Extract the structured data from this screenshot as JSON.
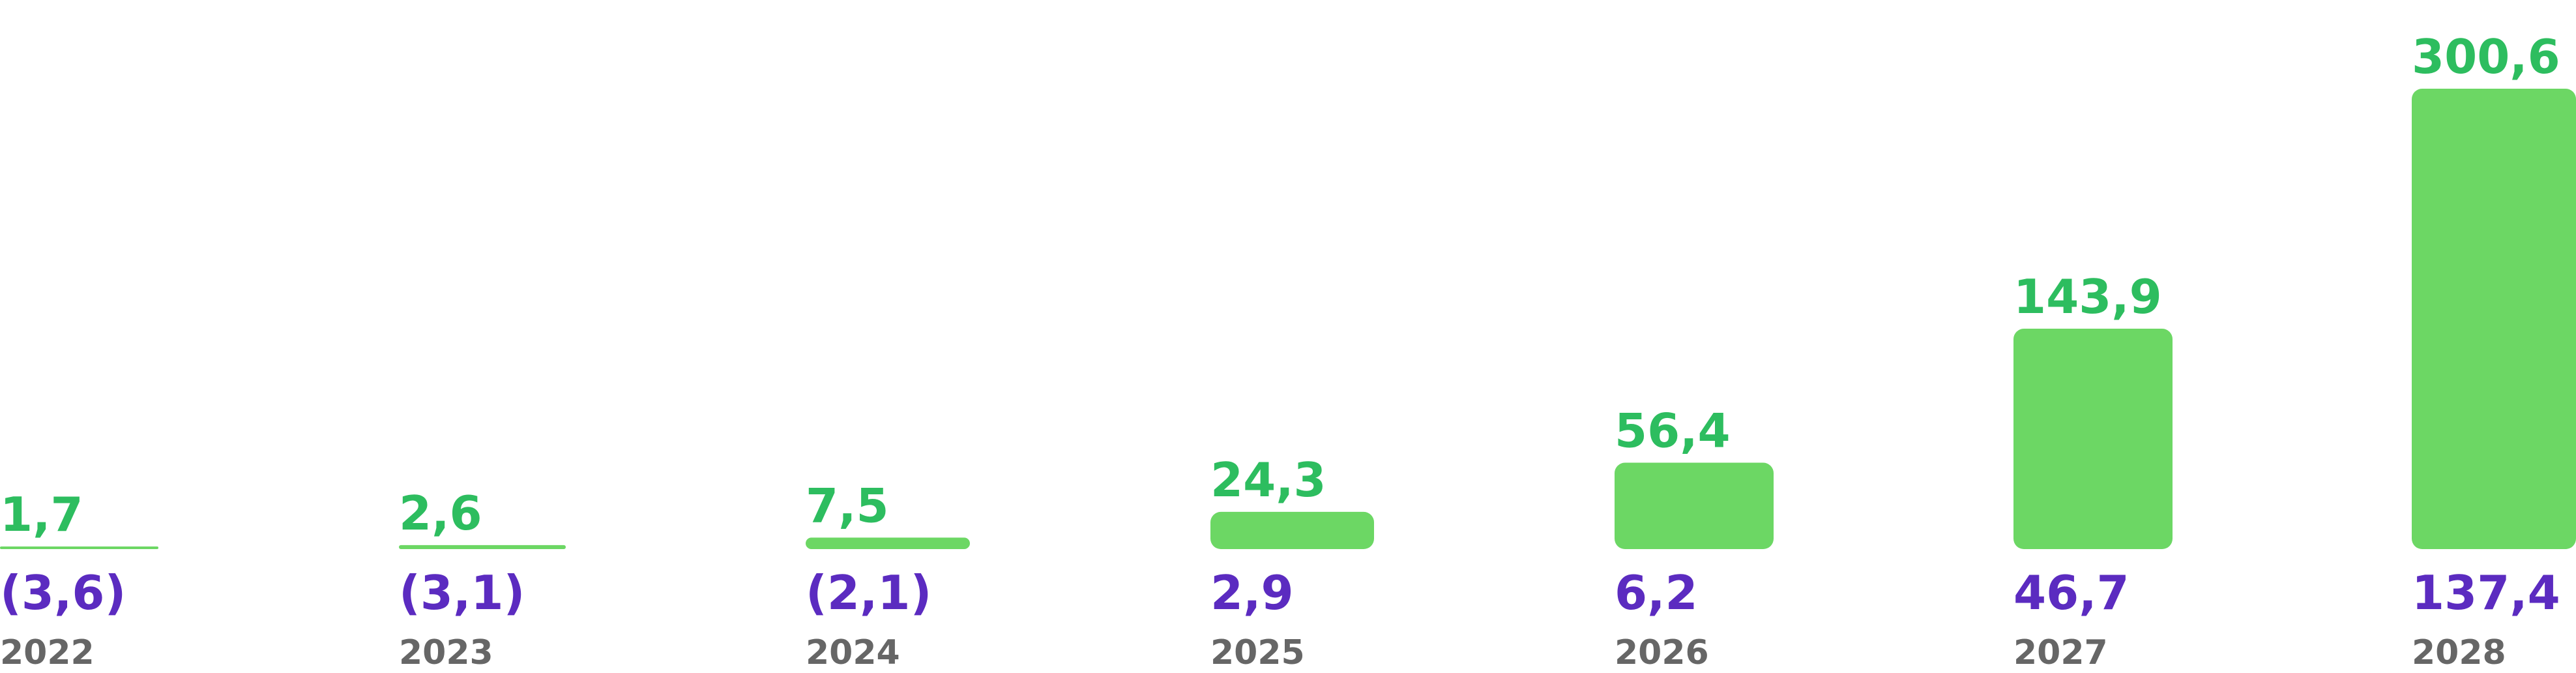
{
  "chart_data": {
    "type": "bar",
    "categories": [
      "2022",
      "2023",
      "2024",
      "2025",
      "2026",
      "2027",
      "2028"
    ],
    "series": [
      {
        "values": [
          1.7,
          2.6,
          7.5,
          24.3,
          56.4,
          143.9,
          300.6
        ]
      }
    ],
    "value_labels": [
      "1,7",
      "2,6",
      "7,5",
      "24,3",
      "56,4",
      "143,9",
      "300,6"
    ],
    "secondary_labels": [
      "(3,6)",
      "(3,1)",
      "(2,1)",
      "2,9",
      "6,2",
      "46,7",
      "137,4"
    ],
    "secondary_values": [
      -3.6,
      -3.1,
      -2.1,
      2.9,
      6.2,
      46.7,
      137.4
    ],
    "colors": {
      "bar": "#6cd764",
      "value_label": "#2dbd5f",
      "secondary_label": "#5b2bc0",
      "year_label": "#666666"
    },
    "title": "",
    "xlabel": "",
    "ylabel": "",
    "ylim": [
      0,
      300.6
    ],
    "grid": false,
    "legend": "none"
  }
}
